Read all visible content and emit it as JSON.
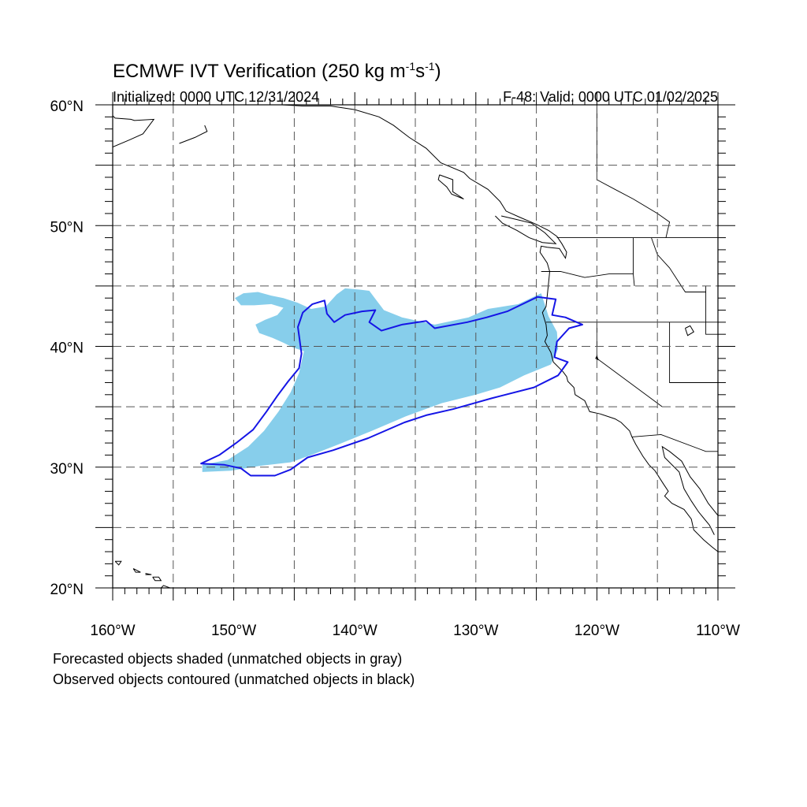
{
  "figure": {
    "title_main": "ECMWF IVT Verification (250 kg m",
    "title_exp1": "-1",
    "title_mid": "s",
    "title_exp2": "-1",
    "title_end": ")",
    "initialized": "Initialized: 0000 UTC 12/31/2024",
    "valid": "F-48: Valid: 0000 UTC 01/02/2025",
    "notes": [
      "Forecasted objects shaded (unmatched objects in gray)",
      "Observed objects contoured (unmatched objects in black)"
    ]
  },
  "map": {
    "lon_range": [
      -160,
      -110
    ],
    "lat_range": [
      20,
      60
    ],
    "lon_labels": [
      {
        "lon": -160,
        "text": "160°W"
      },
      {
        "lon": -150,
        "text": "150°W"
      },
      {
        "lon": -140,
        "text": "140°W"
      },
      {
        "lon": -130,
        "text": "130°W"
      },
      {
        "lon": -120,
        "text": "120°W"
      },
      {
        "lon": -110,
        "text": "110°W"
      }
    ],
    "lat_labels": [
      {
        "lat": 60,
        "text": "60°N"
      },
      {
        "lat": 50,
        "text": "50°N"
      },
      {
        "lat": 40,
        "text": "40°N"
      },
      {
        "lat": 30,
        "text": "30°N"
      },
      {
        "lat": 20,
        "text": "20°N"
      }
    ],
    "gridline_step_deg": 5,
    "forecast_color": "#87ceeb",
    "observed_color": "#1515e6",
    "coast_color": "#000000",
    "forecast_object": [
      [
        -152.6,
        30.2
      ],
      [
        -150.5,
        30.6
      ],
      [
        -148.8,
        31.7
      ],
      [
        -147.5,
        33.0
      ],
      [
        -146.3,
        34.6
      ],
      [
        -145.3,
        36.2
      ],
      [
        -144.6,
        37.8
      ],
      [
        -144.2,
        39.6
      ],
      [
        -145.1,
        39.9
      ],
      [
        -145.9,
        40.3
      ],
      [
        -146.8,
        40.7
      ],
      [
        -147.9,
        41.1
      ],
      [
        -148.2,
        41.8
      ],
      [
        -147.4,
        42.2
      ],
      [
        -146.4,
        42.6
      ],
      [
        -145.9,
        43.2
      ],
      [
        -146.9,
        43.5
      ],
      [
        -148.3,
        43.4
      ],
      [
        -149.4,
        43.4
      ],
      [
        -149.9,
        44.0
      ],
      [
        -149.2,
        44.4
      ],
      [
        -148.0,
        44.5
      ],
      [
        -146.9,
        44.2
      ],
      [
        -145.9,
        44.0
      ],
      [
        -144.7,
        43.6
      ],
      [
        -143.6,
        43.1
      ],
      [
        -142.4,
        43.3
      ],
      [
        -141.5,
        44.3
      ],
      [
        -140.8,
        44.8
      ],
      [
        -139.6,
        44.7
      ],
      [
        -138.8,
        44.6
      ],
      [
        -138.2,
        43.8
      ],
      [
        -137.6,
        43.0
      ],
      [
        -136.1,
        42.4
      ],
      [
        -133.4,
        41.8
      ],
      [
        -130.6,
        42.4
      ],
      [
        -129.0,
        43.1
      ],
      [
        -126.5,
        43.5
      ],
      [
        -124.6,
        44.4
      ],
      [
        -124.0,
        42.5
      ],
      [
        -123.3,
        41.2
      ],
      [
        -123.2,
        39.8
      ],
      [
        -123.8,
        38.5
      ],
      [
        -126.0,
        37.6
      ],
      [
        -128.0,
        36.6
      ],
      [
        -130.0,
        36.0
      ],
      [
        -132.8,
        35.3
      ],
      [
        -135.8,
        34.2
      ],
      [
        -138.6,
        33.0
      ],
      [
        -141.3,
        31.9
      ],
      [
        -143.6,
        31.0
      ],
      [
        -145.3,
        30.4
      ],
      [
        -147.9,
        30.1
      ],
      [
        -150.2,
        29.7
      ],
      [
        -152.6,
        29.6
      ]
    ],
    "observed_object": [
      [
        -152.7,
        30.3
      ],
      [
        -151.2,
        31.0
      ],
      [
        -149.8,
        32.0
      ],
      [
        -148.4,
        33.1
      ],
      [
        -147.3,
        34.6
      ],
      [
        -146.4,
        35.9
      ],
      [
        -145.5,
        37.1
      ],
      [
        -144.6,
        38.2
      ],
      [
        -144.4,
        39.4
      ],
      [
        -144.7,
        41.6
      ],
      [
        -144.3,
        42.8
      ],
      [
        -143.5,
        43.5
      ],
      [
        -142.5,
        43.8
      ],
      [
        -142.3,
        42.7
      ],
      [
        -141.7,
        42.0
      ],
      [
        -140.8,
        42.6
      ],
      [
        -139.4,
        42.9
      ],
      [
        -138.3,
        43.0
      ],
      [
        -138.8,
        42.0
      ],
      [
        -137.8,
        41.3
      ],
      [
        -136.1,
        41.8
      ],
      [
        -134.1,
        42.1
      ],
      [
        -133.4,
        41.5
      ],
      [
        -130.7,
        42.0
      ],
      [
        -129.1,
        42.4
      ],
      [
        -127.4,
        42.9
      ],
      [
        -124.9,
        44.1
      ],
      [
        -123.4,
        43.9
      ],
      [
        -123.7,
        42.6
      ],
      [
        -122.6,
        42.4
      ],
      [
        -121.2,
        41.8
      ],
      [
        -122.3,
        41.5
      ],
      [
        -123.3,
        40.4
      ],
      [
        -123.5,
        39.1
      ],
      [
        -122.4,
        38.7
      ],
      [
        -123.2,
        37.6
      ],
      [
        -125.2,
        36.6
      ],
      [
        -128.7,
        35.7
      ],
      [
        -131.9,
        34.8
      ],
      [
        -134.1,
        34.3
      ],
      [
        -135.9,
        33.7
      ],
      [
        -138.9,
        32.4
      ],
      [
        -141.8,
        31.4
      ],
      [
        -143.9,
        30.8
      ],
      [
        -145.3,
        29.8
      ],
      [
        -146.6,
        29.3
      ],
      [
        -148.6,
        29.3
      ],
      [
        -149.4,
        29.9
      ],
      [
        -150.8,
        30.2
      ],
      [
        -152.7,
        30.3
      ]
    ],
    "coastlines": [
      [
        [
          -160.0,
          56.5
        ],
        [
          -158.6,
          57.1
        ],
        [
          -157.5,
          57.6
        ],
        [
          -156.6,
          58.8
        ],
        [
          -158.2,
          58.7
        ],
        [
          -158.5,
          58.8
        ],
        [
          -159.8,
          58.9
        ],
        [
          -160.0,
          59.1
        ]
      ],
      [
        [
          -154.5,
          56.8
        ],
        [
          -153.2,
          57.3
        ],
        [
          -152.2,
          57.8
        ],
        [
          -152.4,
          58.3
        ]
      ],
      [
        [
          -146.0,
          60.0
        ],
        [
          -144.3,
          59.9
        ],
        [
          -142.0,
          59.9
        ],
        [
          -140.0,
          59.6
        ],
        [
          -138.0,
          59.0
        ],
        [
          -136.8,
          58.3
        ],
        [
          -135.5,
          57.3
        ],
        [
          -134.1,
          56.4
        ],
        [
          -132.9,
          55.2
        ],
        [
          -131.0,
          54.4
        ],
        [
          -130.5,
          53.9
        ],
        [
          -129.0,
          53.0
        ],
        [
          -128.0,
          52.0
        ],
        [
          -127.5,
          51.2
        ],
        [
          -126.4,
          50.7
        ],
        [
          -125.0,
          50.1
        ],
        [
          -124.0,
          49.6
        ],
        [
          -123.3,
          49.1
        ],
        [
          -122.9,
          48.5
        ],
        [
          -122.5,
          47.8
        ],
        [
          -122.6,
          47.3
        ],
        [
          -123.1,
          48.1
        ],
        [
          -124.1,
          48.2
        ],
        [
          -124.6,
          48.3
        ],
        [
          -124.7,
          47.8
        ],
        [
          -124.1,
          46.9
        ],
        [
          -123.9,
          46.2
        ],
        [
          -124.0,
          45.2
        ],
        [
          -124.1,
          44.2
        ],
        [
          -124.2,
          43.3
        ],
        [
          -124.5,
          42.8
        ],
        [
          -124.2,
          41.8
        ],
        [
          -124.1,
          40.9
        ],
        [
          -124.3,
          40.4
        ],
        [
          -123.8,
          39.5
        ],
        [
          -123.6,
          38.7
        ],
        [
          -122.8,
          37.9
        ],
        [
          -122.5,
          37.5
        ],
        [
          -122.4,
          37.1
        ],
        [
          -121.9,
          36.6
        ],
        [
          -121.8,
          36.0
        ],
        [
          -121.0,
          35.5
        ],
        [
          -120.6,
          34.6
        ],
        [
          -119.7,
          34.4
        ],
        [
          -118.5,
          34.0
        ],
        [
          -118.0,
          33.7
        ],
        [
          -117.3,
          33.0
        ],
        [
          -117.1,
          32.5
        ],
        [
          -116.8,
          31.9
        ],
        [
          -116.2,
          30.9
        ],
        [
          -115.7,
          30.2
        ],
        [
          -115.2,
          29.7
        ],
        [
          -114.5,
          28.6
        ],
        [
          -114.1,
          28.0
        ],
        [
          -114.4,
          27.6
        ],
        [
          -113.8,
          27.0
        ],
        [
          -112.8,
          26.5
        ],
        [
          -112.2,
          25.7
        ],
        [
          -112.0,
          24.8
        ],
        [
          -111.2,
          24.0
        ],
        [
          -110.5,
          23.4
        ],
        [
          -110.0,
          23.0
        ]
      ],
      [
        [
          -110.0,
          26.0
        ],
        [
          -110.8,
          27.0
        ],
        [
          -111.5,
          28.2
        ],
        [
          -112.3,
          29.2
        ],
        [
          -113.0,
          30.5
        ],
        [
          -114.0,
          31.3
        ],
        [
          -114.6,
          31.7
        ],
        [
          -114.4,
          30.8
        ],
        [
          -113.2,
          29.6
        ],
        [
          -112.8,
          28.2
        ],
        [
          -112.2,
          27.2
        ],
        [
          -111.6,
          26.3
        ],
        [
          -110.7,
          25.2
        ],
        [
          -110.3,
          24.4
        ]
      ],
      [
        [
          -127.9,
          50.8
        ],
        [
          -126.6,
          50.5
        ],
        [
          -125.4,
          50.2
        ],
        [
          -124.3,
          49.4
        ],
        [
          -123.4,
          48.5
        ],
        [
          -124.5,
          48.6
        ],
        [
          -125.6,
          49.0
        ],
        [
          -126.6,
          49.6
        ],
        [
          -127.8,
          50.2
        ],
        [
          -128.4,
          50.8
        ]
      ],
      [
        [
          -133.0,
          54.2
        ],
        [
          -131.9,
          53.8
        ],
        [
          -131.9,
          52.8
        ],
        [
          -131.0,
          52.2
        ],
        [
          -132.0,
          52.6
        ],
        [
          -132.4,
          53.2
        ],
        [
          -133.1,
          53.8
        ],
        [
          -133.0,
          54.2
        ]
      ],
      [
        [
          -156.1,
          19.9
        ],
        [
          -155.8,
          20.2
        ],
        [
          -155.0,
          19.9
        ],
        [
          -155.3,
          19.0
        ],
        [
          -155.9,
          19.3
        ],
        [
          -156.1,
          19.9
        ]
      ],
      [
        [
          -156.7,
          20.9
        ],
        [
          -156.2,
          20.9
        ],
        [
          -156.0,
          20.6
        ],
        [
          -156.5,
          20.6
        ],
        [
          -156.7,
          20.9
        ]
      ],
      [
        [
          -157.3,
          21.2
        ],
        [
          -156.8,
          21.1
        ],
        [
          -157.3,
          21.1
        ]
      ],
      [
        [
          -158.3,
          21.6
        ],
        [
          -157.7,
          21.3
        ],
        [
          -158.1,
          21.3
        ],
        [
          -158.3,
          21.6
        ]
      ],
      [
        [
          -159.8,
          22.2
        ],
        [
          -159.3,
          22.2
        ],
        [
          -159.5,
          21.9
        ],
        [
          -159.8,
          22.2
        ]
      ]
    ],
    "borders": [
      [
        [
          -123.3,
          49.0
        ],
        [
          -110.0,
          49.0
        ]
      ],
      [
        [
          -124.2,
          42.0
        ],
        [
          -110.0,
          42.0
        ]
      ],
      [
        [
          -120.0,
          42.0
        ],
        [
          -120.0,
          39.0
        ],
        [
          -114.6,
          35.0
        ]
      ],
      [
        [
          -117.1,
          32.5
        ],
        [
          -114.7,
          32.7
        ],
        [
          -111.0,
          31.3
        ],
        [
          -110.0,
          31.3
        ]
      ],
      [
        [
          -117.0,
          49.0
        ],
        [
          -117.0,
          46.0
        ],
        [
          -116.9,
          45.0
        ]
      ],
      [
        [
          -115.5,
          49.0
        ],
        [
          -115.0,
          47.6
        ],
        [
          -114.0,
          46.5
        ],
        [
          -112.7,
          44.5
        ],
        [
          -111.0,
          44.5
        ]
      ],
      [
        [
          -114.0,
          42.0
        ],
        [
          -114.0,
          37.0
        ],
        [
          -110.0,
          37.0
        ]
      ],
      [
        [
          -124.6,
          46.2
        ],
        [
          -123.0,
          46.2
        ],
        [
          -121.0,
          45.7
        ],
        [
          -119.0,
          46.0
        ],
        [
          -117.0,
          46.0
        ]
      ],
      [
        [
          -111.0,
          45.0
        ],
        [
          -111.0,
          41.0
        ],
        [
          -110.0,
          41.0
        ]
      ],
      [
        [
          -120.0,
          60.0
        ],
        [
          -120.0,
          53.8
        ],
        [
          -118.5,
          53.0
        ],
        [
          -117.0,
          52.2
        ],
        [
          -115.0,
          51.0
        ],
        [
          -114.0,
          50.3
        ],
        [
          -114.3,
          49.0
        ]
      ]
    ],
    "lakes": [
      [
        [
          -112.7,
          41.5
        ],
        [
          -112.3,
          41.7
        ],
        [
          -112.0,
          41.2
        ],
        [
          -112.5,
          40.9
        ],
        [
          -112.7,
          41.5
        ]
      ],
      [
        [
          -120.0,
          39.2
        ],
        [
          -119.9,
          38.9
        ],
        [
          -120.1,
          39.0
        ],
        [
          -120.0,
          39.2
        ]
      ]
    ]
  }
}
